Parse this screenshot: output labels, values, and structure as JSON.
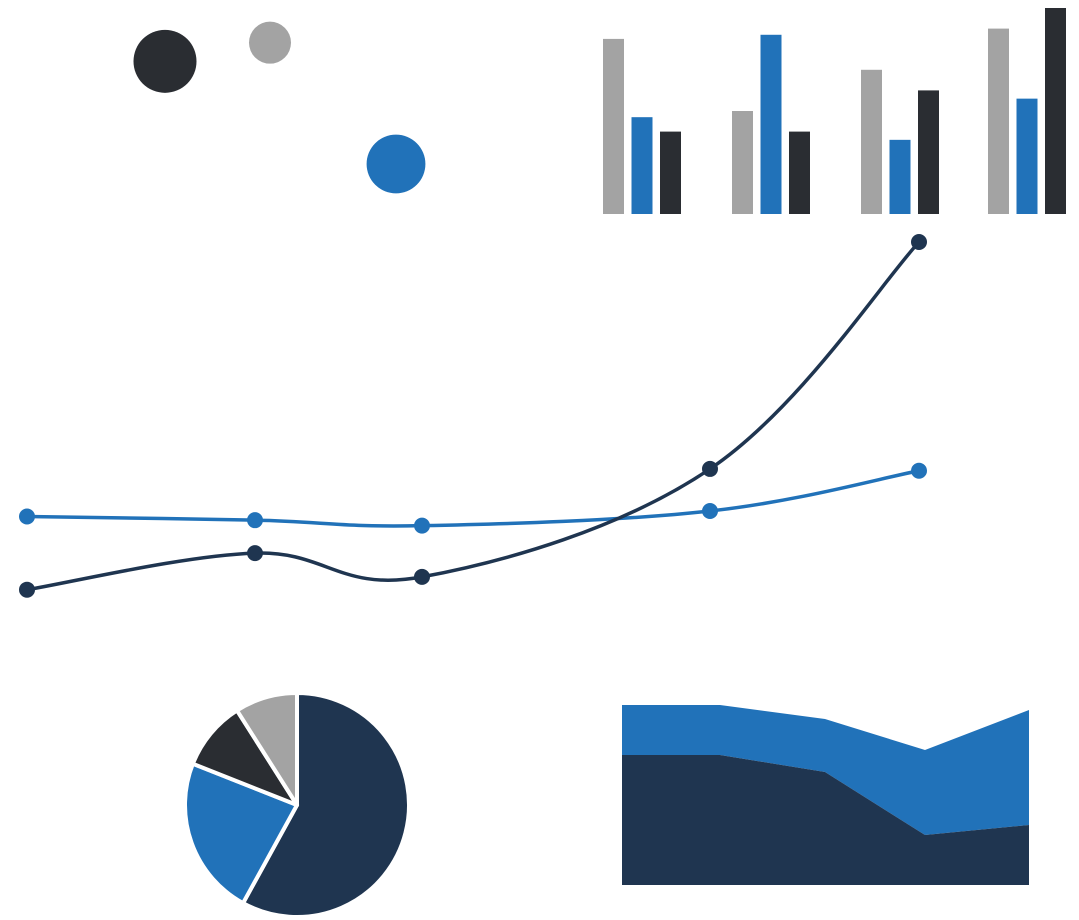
{
  "colors": {
    "gray": "#a3a3a3",
    "blue": "#2172b9",
    "charcoal": "#2a2d32",
    "navy": "#1f3550",
    "white": "#ffffff"
  },
  "chart_data": [
    {
      "type": "scatter",
      "name": "bubble",
      "x": [],
      "points": [
        {
          "x": 1.0,
          "y": 3.4,
          "size": 3,
          "color": "charcoal"
        },
        {
          "x": 2.0,
          "y": 3.8,
          "size": 2,
          "color": "gray"
        },
        {
          "x": 3.2,
          "y": 1.2,
          "size": 2.8,
          "color": "blue"
        }
      ],
      "xlim": [
        0,
        4
      ],
      "ylim": [
        0,
        4.5
      ]
    },
    {
      "type": "bar",
      "categories": [
        "1",
        "2",
        "3",
        "4"
      ],
      "series": [
        {
          "color": "gray",
          "values": [
            85,
            50,
            70,
            90
          ]
        },
        {
          "color": "blue",
          "values": [
            47,
            87,
            36,
            56
          ]
        },
        {
          "color": "charcoal",
          "values": [
            40,
            40,
            60,
            100
          ]
        }
      ],
      "ylim": [
        0,
        100
      ]
    },
    {
      "type": "line",
      "x": [
        0,
        1,
        2,
        3,
        4
      ],
      "series": [
        {
          "color": "blue",
          "values": [
            0.5,
            0.48,
            0.45,
            0.53,
            0.75
          ]
        },
        {
          "color": "navy",
          "values": [
            0.1,
            0.3,
            0.17,
            0.76,
            2.0
          ]
        }
      ],
      "ylim": [
        0,
        2.1
      ]
    },
    {
      "type": "pie",
      "slices": [
        {
          "value": 58,
          "color": "navy"
        },
        {
          "value": 23,
          "color": "blue"
        },
        {
          "value": 10,
          "color": "charcoal"
        },
        {
          "value": 9,
          "color": "gray"
        }
      ]
    },
    {
      "type": "area",
      "x": [
        0,
        1,
        2,
        3,
        4
      ],
      "series": [
        {
          "color": "navy",
          "values": [
            130,
            130,
            113,
            50,
            60
          ]
        },
        {
          "color": "blue",
          "values": [
            50,
            50,
            53,
            85,
            115
          ]
        }
      ],
      "ylim": [
        0,
        180
      ]
    }
  ]
}
